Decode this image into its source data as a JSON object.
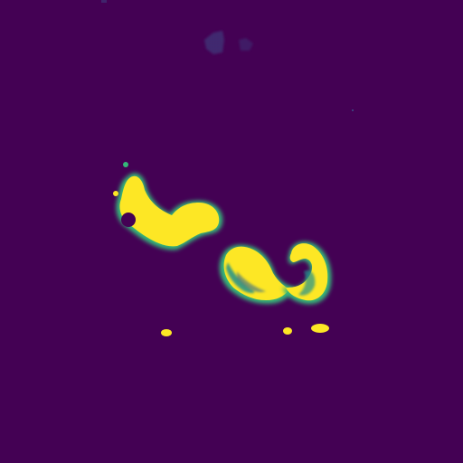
{
  "image": {
    "kind": "segmentation-mask",
    "colormap": "viridis",
    "colors": {
      "background": "#440154",
      "mask_high": "#fde725",
      "mask_edge_green": "#35b779",
      "mask_edge_teal": "#21918c",
      "mask_edge_blue": "#31688e",
      "noise_blue": "#3b528b"
    }
  }
}
